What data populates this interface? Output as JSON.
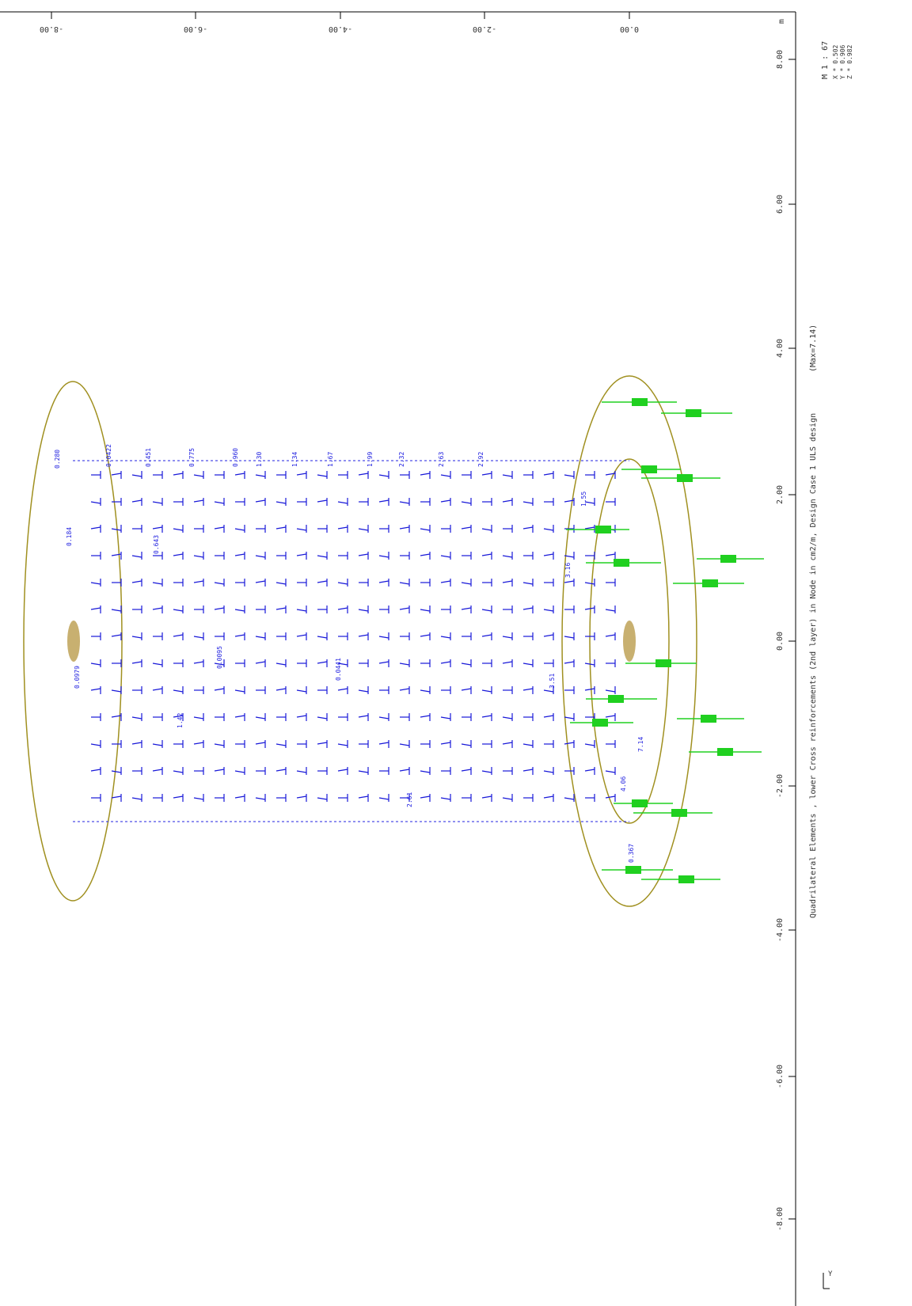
{
  "header": {
    "unit": "m",
    "scale": "M 1 : 67",
    "factors": [
      "X * 0.502",
      "Y * 0.906",
      "Z * 0.982"
    ]
  },
  "caption": {
    "title": "Quadrilateral Elements , lower Cross reinforcements (2nd layer) in Node in cm2/m, Design Case 1 ULS design",
    "max": "(Max=7.14)"
  },
  "axes": {
    "top": [
      "-8.00",
      "-6.00",
      "-4.00",
      "-2.00",
      "0.00"
    ],
    "right": [
      "8.00",
      "6.00",
      "4.00",
      "2.00",
      "0.00",
      "-2.00",
      "-4.00",
      "-6.00",
      "-8.00"
    ],
    "icon": "Y"
  },
  "node_labels": [
    "0.280",
    "0.0422",
    "0.451",
    "0.775",
    "0.960",
    "1.30",
    "1.34",
    "1.67",
    "1.99",
    "2.32",
    "2.63",
    "2.92",
    "0.0095",
    "1.42",
    "3.16",
    "4.06",
    "7.14",
    "0.367",
    "0.0979",
    "0.184",
    "0.643",
    "2.61",
    "3.51",
    "0.0441",
    "1.55"
  ]
}
